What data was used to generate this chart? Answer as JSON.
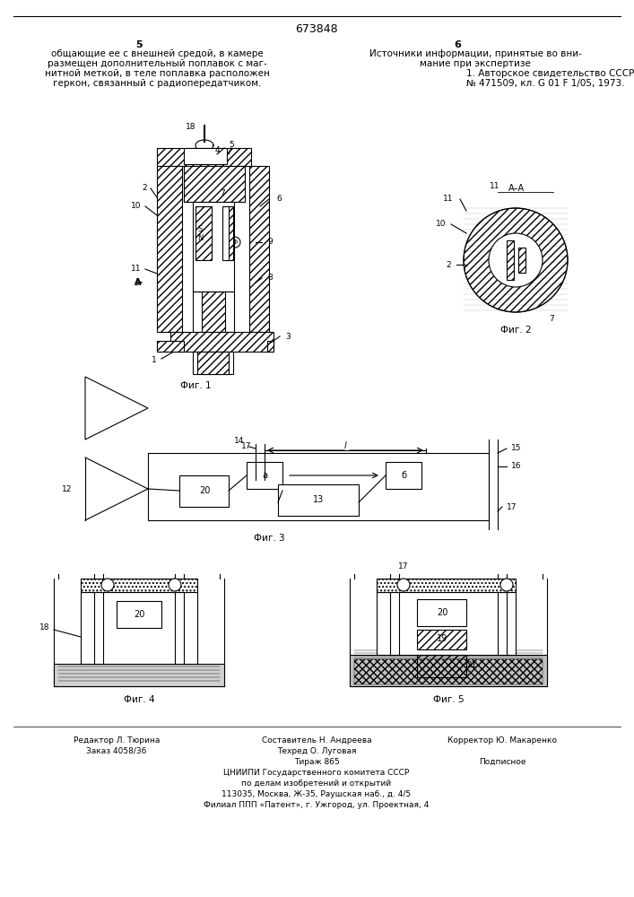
{
  "title": "673848",
  "col5_text": "5",
  "col6_text": "6",
  "left_text": "общающие ее с внешней средой, в камере\nразмещен дополнительный поплавок с маг-\nнитной меткой, в теле поплавка расположен\nгеркон, связанный с радиопередатчиком.",
  "right_text_title": "Источники информации, принятые во вни-\nмание при экспертизе",
  "right_text_body": "1. Авторское свидетельство СССР\n№ 471509, кл. G 01 F 1/05, 1973.",
  "fig1_caption": "Фиг. 1",
  "fig2_caption": "Фиг. 2",
  "fig3_caption": "Фиг. 3",
  "fig4_caption": "Фиг. 4",
  "fig5_caption": "Фиг. 5",
  "footer_line1_left": "Редактор Л. Тюрина",
  "footer_line1_center": "Составитель Н. Андреева",
  "footer_line1_right": "Корректор Ю. Макаренко",
  "footer_line2_left": "Заказ 4058/36",
  "footer_line2_center": "Техред О. Луговая",
  "footer_line2_right": "",
  "footer_line3_left": "",
  "footer_line3_center": "Тираж 865",
  "footer_line3_right": "Подписное",
  "footer_line4": "ЦНИИПИ Государственного комитета СССР",
  "footer_line5": "по делам изобретений и открытий",
  "footer_line6": "113035, Москва, Ж-35, Раушская наб., д. 4/5",
  "footer_line7": "Филиал ППП «Патент», г. Ужгород, ул. Проектная, 4",
  "bg_color": "#ffffff",
  "line_color": "#000000",
  "hatch_color": "#555555"
}
